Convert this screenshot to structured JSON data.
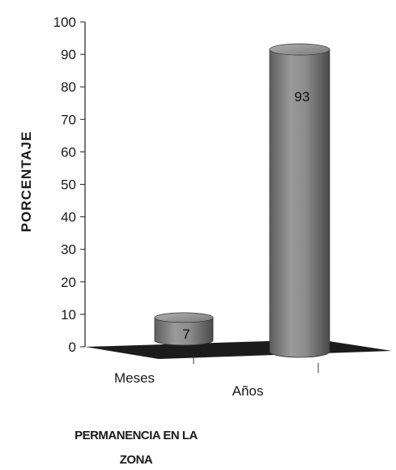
{
  "chart_data": {
    "type": "bar",
    "categories": [
      "Meses",
      "Años"
    ],
    "values": [
      7,
      93
    ],
    "data_labels": [
      "7",
      "93"
    ],
    "ylabel": "PORCENTAJE",
    "xlabel_lines": [
      "PERMANENCIA EN LA",
      "ZONA"
    ],
    "ylim": [
      0,
      100
    ],
    "yticks": [
      0,
      10,
      20,
      30,
      40,
      50,
      60,
      70,
      80,
      90,
      100
    ],
    "grid": false,
    "bar_style": "3d-cylinder",
    "bar_color": "#8a8a8a",
    "floor_color": "#1c1c1c"
  }
}
